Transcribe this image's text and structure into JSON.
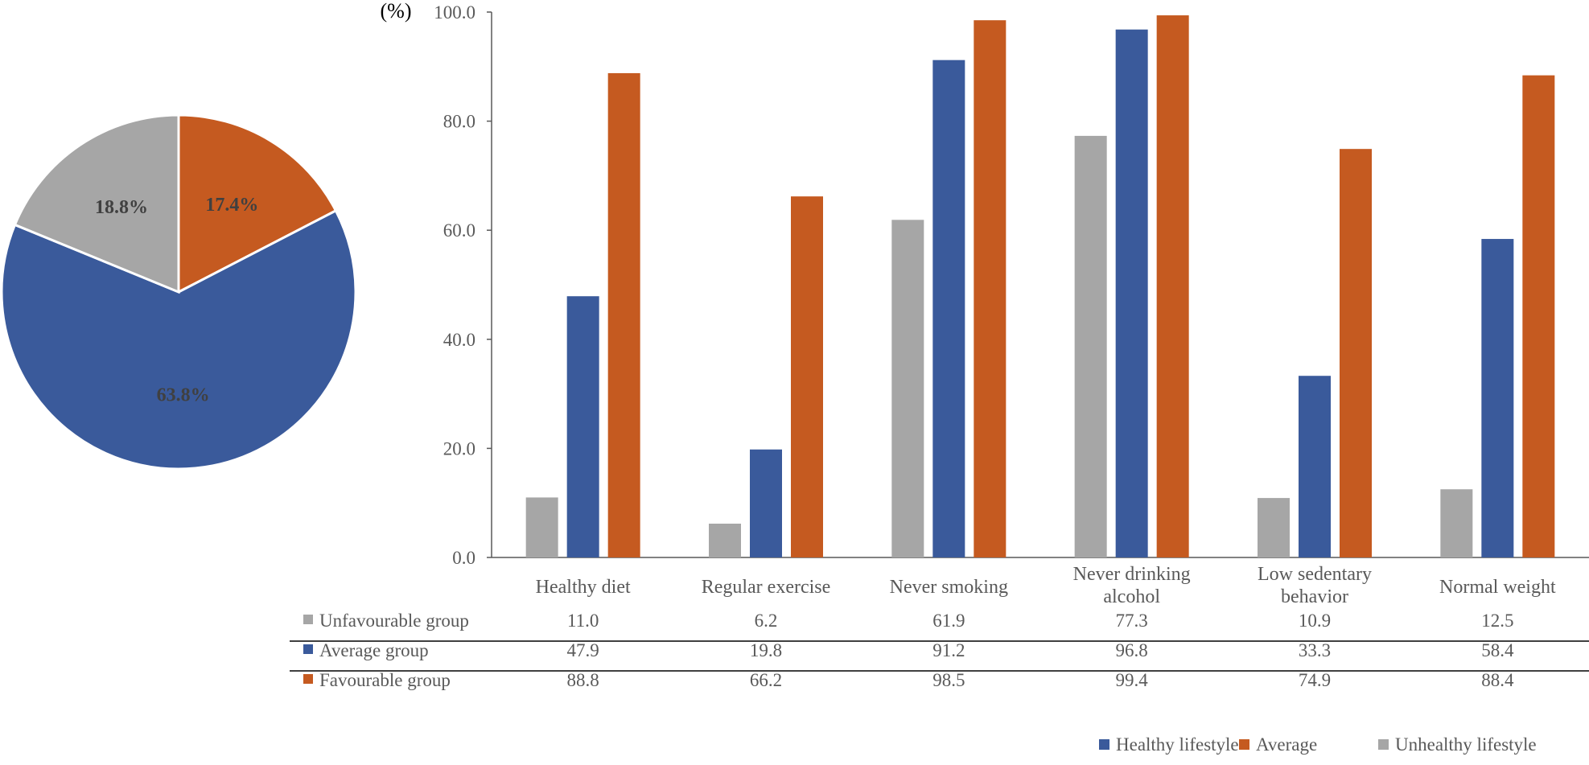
{
  "chart_data": [
    {
      "type": "pie",
      "title": "",
      "slices": [
        {
          "name": "Average",
          "value": 17.4,
          "label": "17.4%",
          "color": "#C55A20"
        },
        {
          "name": "Healthy lifestyle",
          "value": 63.8,
          "label": "63.8%",
          "color": "#3A5A9B"
        },
        {
          "name": "Unhealthy lifestyle",
          "value": 18.8,
          "label": "18.8%",
          "color": "#A6A6A6"
        }
      ],
      "legend": {
        "position": "bottom-right",
        "items": [
          {
            "label": "Healthy lifestyle",
            "color": "#3A5A9B"
          },
          {
            "label": "Average",
            "color": "#C55A20"
          },
          {
            "label": "Unhealthy lifestyle",
            "color": "#A6A6A6"
          }
        ]
      }
    },
    {
      "type": "bar",
      "title": "",
      "ylabel": "(%)",
      "xlabel": "",
      "ylim": [
        0,
        100
      ],
      "yticks": [
        "0.0",
        "20.0",
        "40.0",
        "60.0",
        "80.0",
        "100.0"
      ],
      "grid": false,
      "categories": [
        [
          "Healthy diet"
        ],
        [
          "Regular exercise"
        ],
        [
          "Never smoking"
        ],
        [
          "Never drinking",
          "alcohol"
        ],
        [
          "Low sedentary",
          "behavior"
        ],
        [
          "Normal weight"
        ]
      ],
      "series": [
        {
          "name": "Unfavourable group",
          "color": "#A6A6A6",
          "values": [
            11.0,
            6.2,
            61.9,
            77.3,
            10.9,
            12.5
          ],
          "labels": [
            "11.0",
            "6.2",
            "61.9",
            "77.3",
            "10.9",
            "12.5"
          ]
        },
        {
          "name": "Average group",
          "color": "#3A5A9B",
          "values": [
            47.9,
            19.8,
            91.2,
            96.8,
            33.3,
            58.4
          ],
          "labels": [
            "47.9",
            "19.8",
            "91.2",
            "96.8",
            "33.3",
            "58.4"
          ]
        },
        {
          "name": "Favourable group",
          "color": "#C55A20",
          "values": [
            88.8,
            66.2,
            98.5,
            99.4,
            74.9,
            88.4
          ],
          "labels": [
            "88.8",
            "66.2",
            "98.5",
            "99.4",
            "74.9",
            "88.4"
          ]
        }
      ],
      "data_table": true
    }
  ]
}
